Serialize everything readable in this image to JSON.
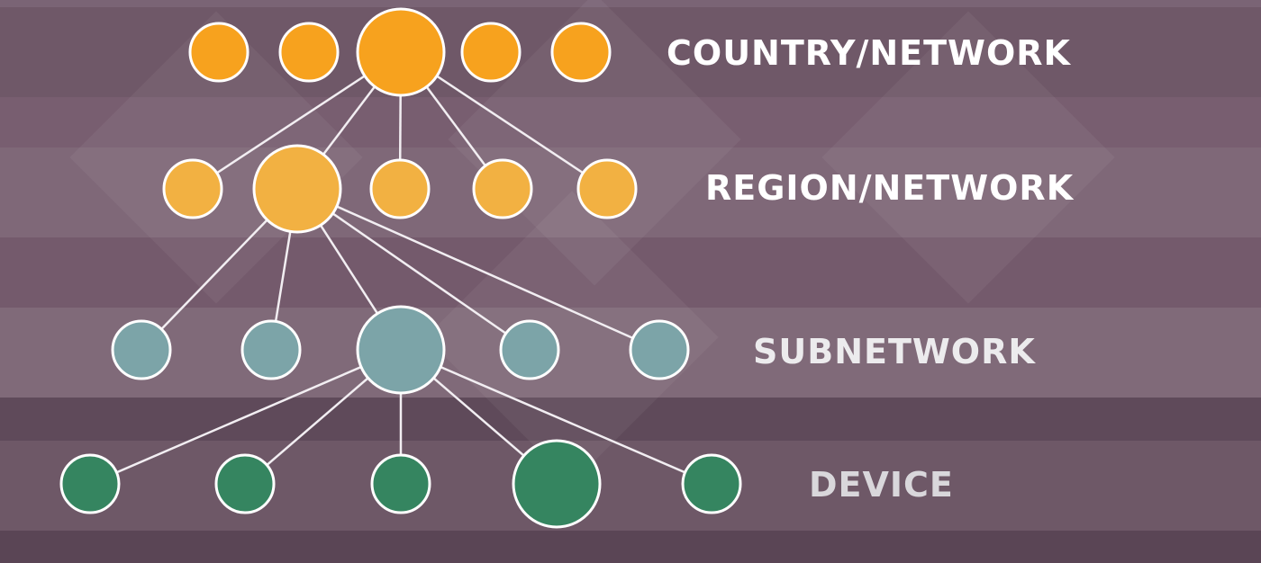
{
  "diagram": {
    "levels": [
      {
        "id": "country",
        "label": "COUNTRY/NETWORK",
        "color": "#f7a21e",
        "node_count": 5,
        "highlighted_index": 2
      },
      {
        "id": "region",
        "label": "REGION/NETWORK",
        "color": "#f2b142",
        "node_count": 5,
        "highlighted_index": 1
      },
      {
        "id": "subnetwork",
        "label": "SUBNETWORK",
        "color": "#7ca4a8",
        "node_count": 5,
        "highlighted_index": 2
      },
      {
        "id": "device",
        "label": "DEVICE",
        "color": "#358560",
        "node_count": 5,
        "highlighted_index": 3
      }
    ],
    "node_outline_color": "#ffffff",
    "connector_color": "#f2eef2"
  }
}
